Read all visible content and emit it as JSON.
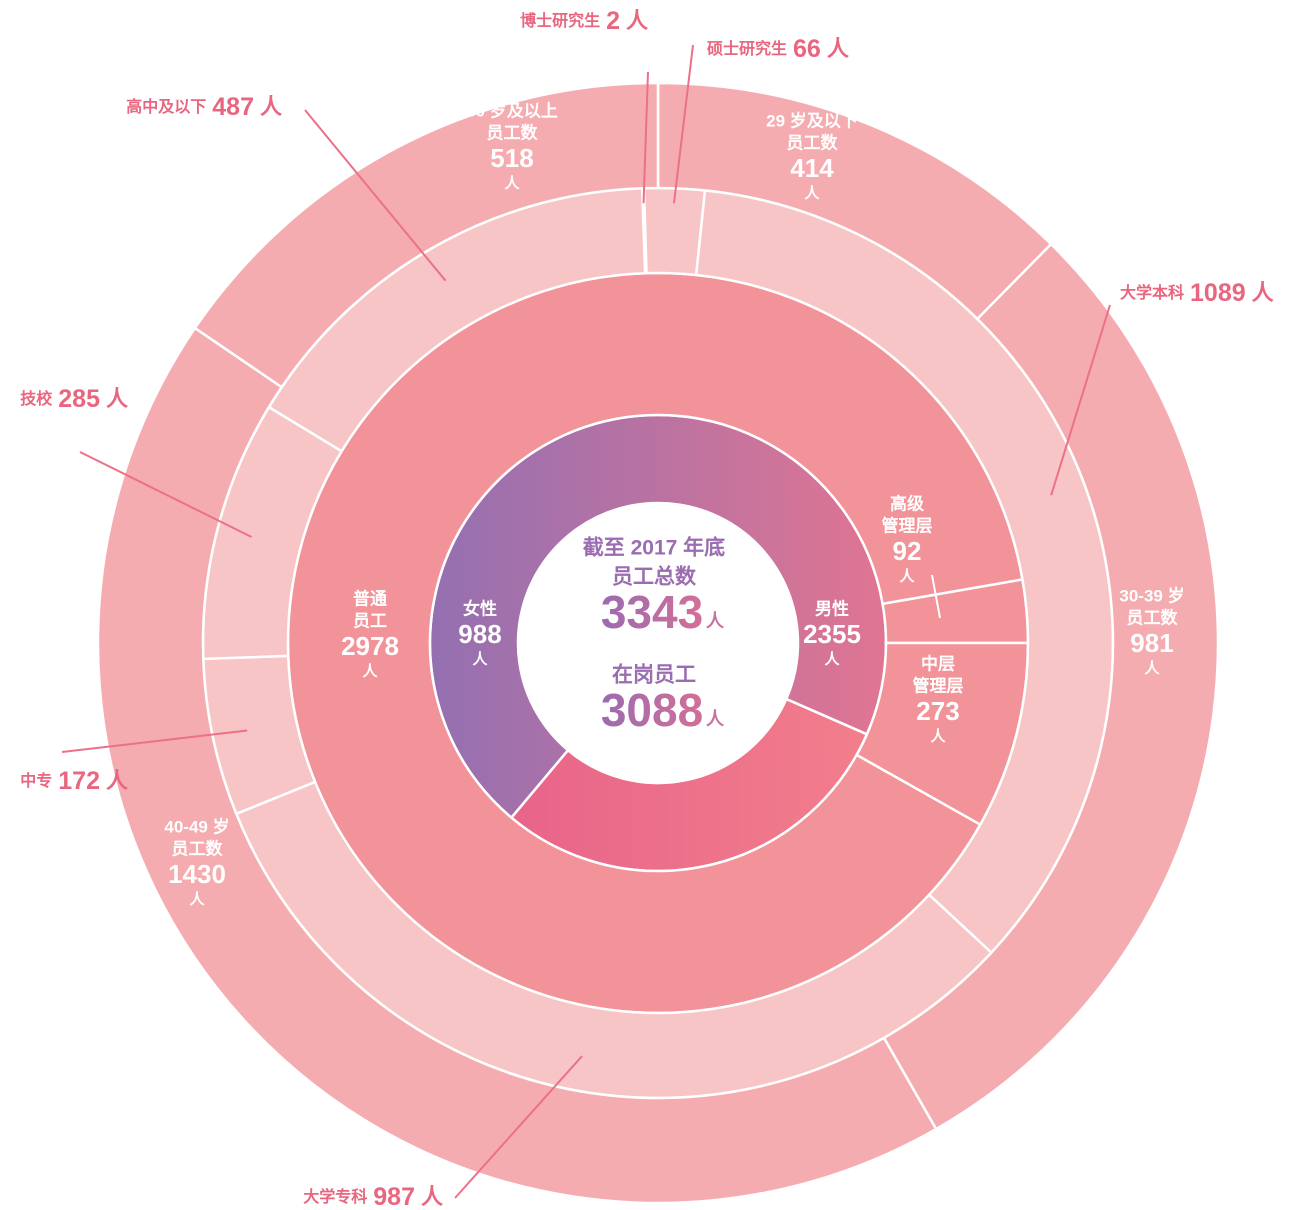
{
  "chart_data": {
    "type": "sunburst",
    "center": {
      "lines": [
        "截至 2017 年底",
        "员工总数"
      ],
      "total": 3343,
      "on_duty_label": "在岗员工",
      "on_duty": 3088
    },
    "unit": "人",
    "rings": [
      {
        "categories": [
          [
            "男性"
          ],
          [
            "女性"
          ]
        ],
        "values": [
          2355,
          988
        ],
        "colors": [
          [
            "#9470b1",
            "#e07592"
          ],
          [
            "#e8648a",
            "#f27e8b"
          ]
        ]
      },
      {
        "categories": [
          [
            "高级",
            "管理层"
          ],
          [
            "中层",
            "管理层"
          ],
          [
            "普通",
            "员工"
          ]
        ],
        "values": [
          92,
          273,
          2978
        ],
        "colors": [
          "#f2939a",
          "#f2939a",
          "#f2939a"
        ]
      },
      {
        "categories": [
          "博士研究生",
          "硕士研究生",
          "大学本科",
          "大学专科",
          "中专",
          "技校",
          "高中及以下"
        ],
        "values": [
          2,
          66,
          1089,
          987,
          172,
          285,
          487
        ],
        "colors": [
          "#f7c5c6",
          "#f7c5c6",
          "#f7c5c6",
          "#f7c5c6",
          "#f7c5c6",
          "#f7c5c6",
          "#f7c5c6"
        ]
      },
      {
        "categories": [
          [
            "29 岁及以下",
            "员工数"
          ],
          [
            "30-39 岁",
            "员工数"
          ],
          [
            "40-49 岁",
            "员工数"
          ],
          [
            "50 岁及以上",
            "员工数"
          ]
        ],
        "values": [
          414,
          981,
          1430,
          518
        ],
        "colors": [
          "#f5acb0",
          "#f5acb0",
          "#f5acb0",
          "#f5acb0"
        ]
      }
    ]
  }
}
